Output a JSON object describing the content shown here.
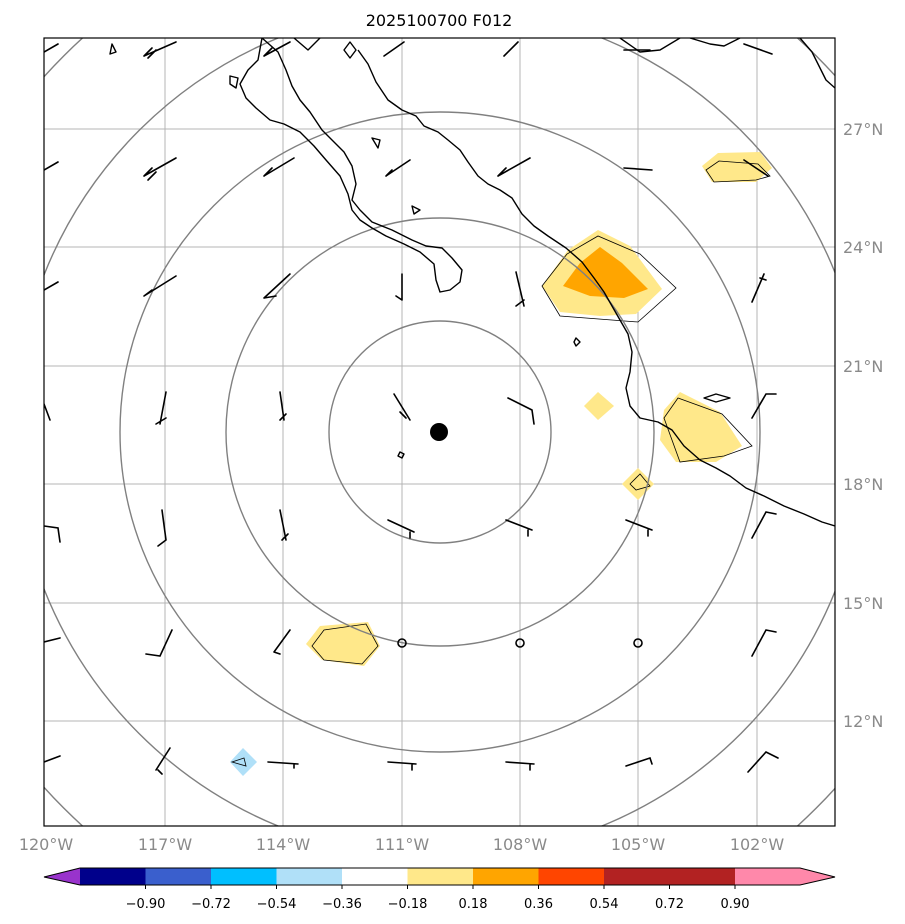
{
  "title": "2025100700 F012",
  "longitude_labels": [
    "120°W",
    "117°W",
    "114°W",
    "111°W",
    "108°W",
    "105°W",
    "102°W"
  ],
  "latitude_labels": [
    "27°N",
    "24°N",
    "21°N",
    "18°N",
    "15°N",
    "12°N"
  ],
  "storm_center": {
    "lon": -110.9,
    "lat": 19.3
  },
  "range_rings": [
    "ring-1",
    "ring-2",
    "ring-3",
    "ring-4",
    "ring-5"
  ],
  "colorbar": {
    "labels": [
      "−0.90",
      "−0.72",
      "−0.54",
      "−0.36",
      "−0.18",
      "0.18",
      "0.36",
      "0.54",
      "0.72",
      "0.90"
    ],
    "colors": [
      "#9933cc",
      "#00008b",
      "#3a5fcd",
      "#00bfff",
      "#b0e0f8",
      "#ffffff",
      "#ffe88a",
      "#ffa500",
      "#ff4500",
      "#b22222",
      "#ff88aa"
    ]
  },
  "colors": {
    "grid": "#b4b4b4",
    "ring": "#808080",
    "coast": "#000000",
    "light_blue": "#b0e0f8",
    "yellow": "#ffe88a",
    "orange": "#ffa500"
  }
}
